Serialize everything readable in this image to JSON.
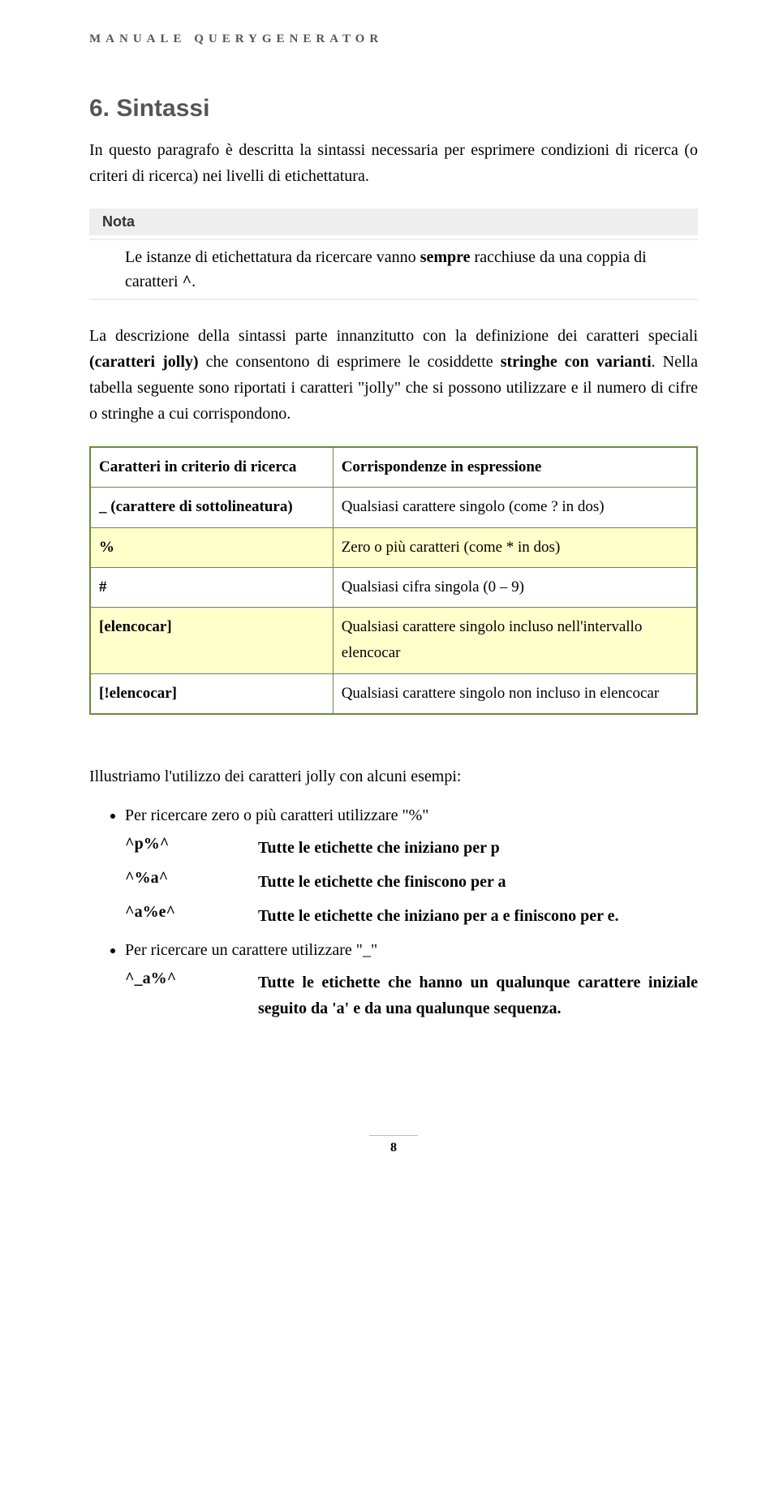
{
  "header": "MANUALE QUERYGENERATOR",
  "heading": "6. Sintassi",
  "intro": "In questo paragrafo è descritta la sintassi necessaria per esprimere condizioni di ricerca (o criteri di ricerca) nei  livelli di etichettatura.",
  "note": {
    "title": "Nota",
    "body_pre": "Le istanze di etichettatura da ricercare vanno ",
    "body_bold": "sempre",
    "body_post": " racchiuse da una coppia di caratteri ",
    "body_caret": "^",
    "body_end": "."
  },
  "para2_pre": "La descrizione della sintassi parte innanzitutto con la definizione dei caratteri speciali ",
  "para2_bold": "(caratteri jolly)",
  "para2_mid": " che consentono di esprimere le cosiddette ",
  "para2_bold2": "stringhe con varianti",
  "para2_post": ". Nella tabella seguente sono riportati i caratteri \"jolly\" che si possono utilizzare  e il numero di cifre o stringhe a cui corrispondono.",
  "table": {
    "head_left": "Caratteri in criterio di ricerca",
    "head_right": "Corrispondenze in espressione",
    "rows": [
      {
        "l": "_ (carattere di sottolineatura)",
        "r": "Qualsiasi carattere singolo (come ? in dos)",
        "hl": false
      },
      {
        "l": " %",
        "r": "Zero o più caratteri (come * in dos)",
        "hl": true
      },
      {
        "l": "#",
        "r": "Qualsiasi cifra singola (0 – 9)",
        "hl": false
      },
      {
        "l": "[elencocar]",
        "r": "Qualsiasi carattere singolo incluso nell'intervallo elencocar",
        "hl": true
      },
      {
        "l": "[!elencocar]",
        "r": "Qualsiasi carattere singolo non incluso in elencocar",
        "hl": false
      }
    ]
  },
  "examples_intro": "Illustriamo l'utilizzo dei caratteri jolly con alcuni esempi:",
  "bullet1": "Per ricercare zero o più caratteri utilizzare \"%\"",
  "ex1": [
    {
      "p": "^p%^",
      "d": "Tutte le etichette che iniziano per p"
    },
    {
      "p": "^%a^",
      "d": "Tutte le etichette che finiscono per a"
    },
    {
      "p": "^a%e^",
      "d": "Tutte le etichette che iniziano per a e finiscono per e."
    }
  ],
  "bullet2": "Per ricercare un carattere  utilizzare \"_\"",
  "ex2": [
    {
      "p": "^_a%^",
      "d": "Tutte le etichette che hanno un qualunque carattere iniziale  seguito da 'a' e da una qualunque sequenza."
    }
  ],
  "page_number": "8"
}
